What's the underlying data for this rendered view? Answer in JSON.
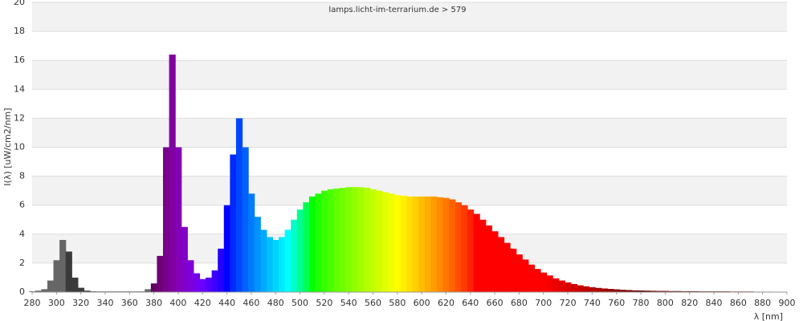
{
  "chart_data": {
    "type": "spectrum",
    "title": "lamps.licht-im-terrarium.de > 579",
    "x_label": "λ [nm]",
    "y_label": "I(λ)  [uW/cm2/nm]",
    "x": [
      280,
      285,
      290,
      295,
      300,
      305,
      310,
      315,
      320,
      325,
      330,
      335,
      340,
      345,
      350,
      355,
      360,
      365,
      370,
      375,
      380,
      385,
      390,
      395,
      400,
      405,
      410,
      415,
      420,
      425,
      430,
      435,
      440,
      445,
      450,
      455,
      460,
      465,
      470,
      475,
      480,
      485,
      490,
      495,
      500,
      505,
      510,
      515,
      520,
      525,
      530,
      535,
      540,
      545,
      550,
      555,
      560,
      565,
      570,
      575,
      580,
      585,
      590,
      595,
      600,
      605,
      610,
      615,
      620,
      625,
      630,
      635,
      640,
      645,
      650,
      655,
      660,
      665,
      670,
      675,
      680,
      685,
      690,
      695,
      700,
      705,
      710,
      715,
      720,
      725,
      730,
      735,
      740,
      745,
      750,
      755,
      760,
      765,
      770,
      775,
      780,
      785,
      790,
      795,
      800,
      805,
      810,
      815,
      820,
      825,
      830,
      835,
      840,
      845,
      850,
      855,
      860,
      865,
      870,
      875,
      880,
      885,
      890
    ],
    "values": [
      0.05,
      0.1,
      0.2,
      0.8,
      2.2,
      3.6,
      2.8,
      1.0,
      0.3,
      0.1,
      0.05,
      0.05,
      0.05,
      0.05,
      0.05,
      0.05,
      0.05,
      0.05,
      0.05,
      0.2,
      0.6,
      2.5,
      10,
      16.4,
      10,
      4.5,
      2.2,
      1.3,
      0.9,
      1.0,
      1.5,
      3,
      6,
      9.5,
      12,
      10,
      6.8,
      5.2,
      4.3,
      3.8,
      3.6,
      3.8,
      4.3,
      5.0,
      5.7,
      6.2,
      6.6,
      6.8,
      7.0,
      7.1,
      7.15,
      7.2,
      7.25,
      7.25,
      7.25,
      7.2,
      7.1,
      7.0,
      6.9,
      6.8,
      6.7,
      6.65,
      6.6,
      6.6,
      6.6,
      6.6,
      6.6,
      6.55,
      6.5,
      6.4,
      6.2,
      6.0,
      5.7,
      5.4,
      5.0,
      4.6,
      4.2,
      3.8,
      3.4,
      3.0,
      2.6,
      2.25,
      1.9,
      1.6,
      1.35,
      1.15,
      0.95,
      0.8,
      0.67,
      0.56,
      0.47,
      0.4,
      0.34,
      0.29,
      0.25,
      0.22,
      0.19,
      0.16,
      0.14,
      0.12,
      0.11,
      0.1,
      0.09,
      0.08,
      0.08,
      0.07,
      0.07,
      0.06,
      0.06,
      0.06,
      0.05,
      0.05,
      0.05,
      0.05,
      0.05,
      0.04,
      0.04,
      0.04,
      0.04,
      0.03,
      0.03,
      0.03,
      0.02
    ],
    "xlim": [
      280,
      900
    ],
    "xticks": [
      280,
      300,
      320,
      340,
      360,
      380,
      400,
      420,
      440,
      460,
      480,
      500,
      520,
      540,
      560,
      580,
      600,
      620,
      640,
      660,
      680,
      700,
      720,
      740,
      760,
      780,
      800,
      820,
      840,
      860,
      880,
      900
    ],
    "ylim": [
      0,
      20
    ],
    "yticks": [
      0,
      2,
      4,
      6,
      8,
      10,
      12,
      14,
      16,
      18,
      20
    ],
    "grid": true
  }
}
